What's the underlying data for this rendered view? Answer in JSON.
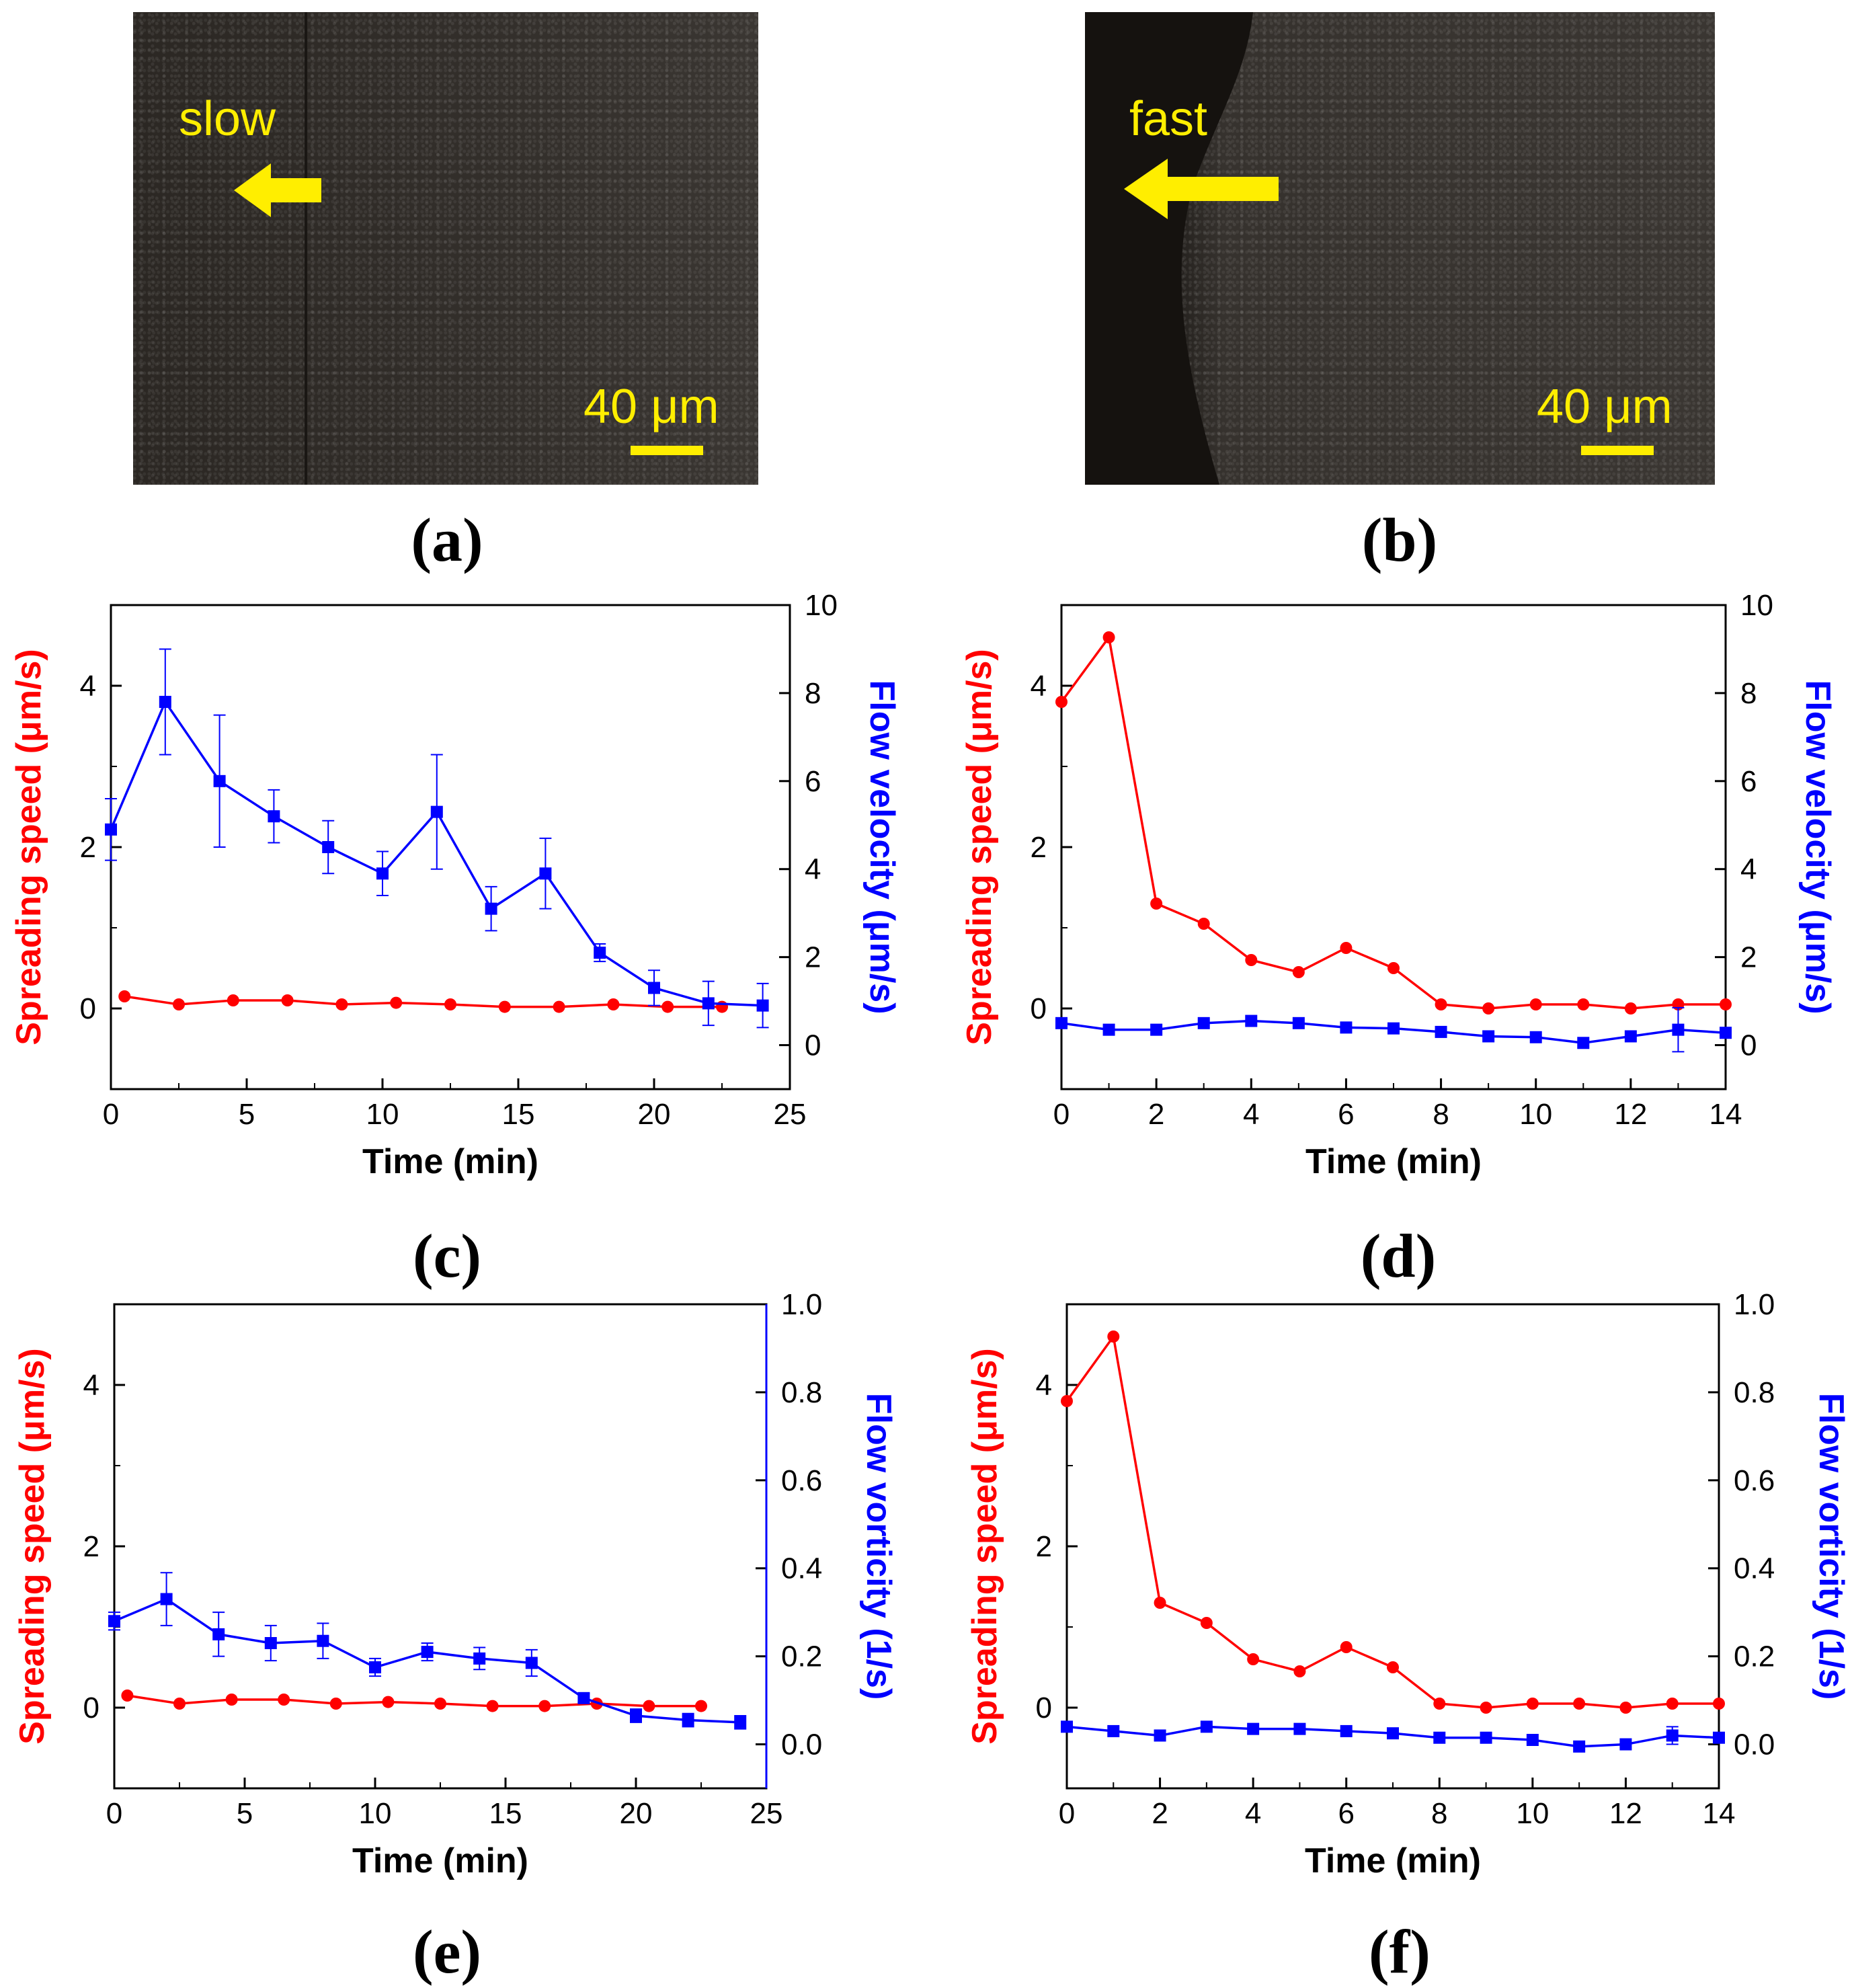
{
  "images": [
    {
      "label": "slow",
      "scale": "40 μm",
      "caption": "(a)"
    },
    {
      "label": "fast",
      "scale": "40 μm",
      "caption": "(b)"
    }
  ],
  "colors": {
    "speed": "#ff0000",
    "flow": "#0000ff",
    "highlight": "#ffee00"
  },
  "chart_data": [
    {
      "id": "c",
      "caption": "(c)",
      "type": "line",
      "xlabel": "Time (min)",
      "ylabel_left": "Spreading speed (μm/s)",
      "ylabel_right": "Flow velocity (μm/s)",
      "xlim": [
        0,
        25
      ],
      "ylim_left": [
        -1,
        5
      ],
      "ylim_right": [
        -1,
        10
      ],
      "xticks": [
        0,
        5,
        10,
        15,
        20,
        25
      ],
      "yticks_left": [
        0,
        2,
        4
      ],
      "yticks_right": [
        0,
        2,
        4,
        6,
        8,
        10
      ],
      "series": [
        {
          "name": "Spreading speed",
          "axis": "left",
          "color": "#ff0000",
          "marker": "circle",
          "x": [
            0.5,
            2.5,
            4.5,
            6.5,
            8.5,
            10.5,
            12.5,
            14.5,
            16.5,
            18.5,
            20.5,
            22.5
          ],
          "y": [
            0.15,
            0.05,
            0.1,
            0.1,
            0.05,
            0.07,
            0.05,
            0.02,
            0.02,
            0.05,
            0.02,
            0.02
          ]
        },
        {
          "name": "Flow velocity",
          "axis": "right",
          "color": "#0000ff",
          "marker": "square",
          "x": [
            0,
            2,
            4,
            6,
            8,
            10,
            12,
            14,
            16,
            18,
            20,
            22,
            24
          ],
          "y": [
            4.9,
            7.8,
            6.0,
            5.2,
            4.5,
            3.9,
            5.3,
            3.1,
            3.9,
            2.1,
            1.3,
            0.95,
            0.9
          ],
          "err": [
            0.7,
            1.2,
            1.5,
            0.6,
            0.6,
            0.5,
            1.3,
            0.5,
            0.8,
            0.2,
            0.4,
            0.5,
            0.5
          ]
        }
      ]
    },
    {
      "id": "d",
      "caption": "(d)",
      "type": "line",
      "xlabel": "Time (min)",
      "ylabel_left": "Spreading speed (μm/s)",
      "ylabel_right": "Flow velocity (μm/s)",
      "xlim": [
        0,
        14
      ],
      "ylim_left": [
        -1,
        5
      ],
      "ylim_right": [
        -1,
        10
      ],
      "xticks": [
        0,
        2,
        4,
        6,
        8,
        10,
        12,
        14
      ],
      "yticks_left": [
        0,
        2,
        4
      ],
      "yticks_right": [
        0,
        2,
        4,
        6,
        8,
        10
      ],
      "series": [
        {
          "name": "Spreading speed",
          "axis": "left",
          "color": "#ff0000",
          "marker": "circle",
          "x": [
            0,
            1,
            2,
            3,
            4,
            5,
            6,
            7,
            8,
            9,
            10,
            11,
            12,
            13,
            14
          ],
          "y": [
            3.8,
            4.6,
            1.3,
            1.05,
            0.6,
            0.45,
            0.75,
            0.5,
            0.05,
            0.0,
            0.05,
            0.05,
            0.0,
            0.05,
            0.05
          ]
        },
        {
          "name": "Flow velocity",
          "axis": "right",
          "color": "#0000ff",
          "marker": "square",
          "x": [
            0,
            1,
            2,
            3,
            4,
            5,
            6,
            7,
            8,
            9,
            10,
            11,
            12,
            13,
            14
          ],
          "y": [
            0.5,
            0.35,
            0.35,
            0.5,
            0.55,
            0.5,
            0.4,
            0.38,
            0.3,
            0.2,
            0.18,
            0.05,
            0.2,
            0.35,
            0.28
          ],
          "err": [
            0,
            0,
            0,
            0,
            0,
            0,
            0,
            0,
            0,
            0,
            0,
            0,
            0,
            0.5,
            0
          ]
        }
      ]
    },
    {
      "id": "e",
      "caption": "(e)",
      "type": "line",
      "xlabel": "Time (min)",
      "ylabel_left": "Spreading speed (μm/s)",
      "ylabel_right": "Flow vorticity (1/s)",
      "xlim": [
        0,
        25
      ],
      "ylim_left": [
        -1,
        5
      ],
      "ylim_right": [
        -0.1,
        1.0
      ],
      "xticks": [
        0,
        5,
        10,
        15,
        20,
        25
      ],
      "yticks_left": [
        0,
        2,
        4
      ],
      "yticks_right": [
        0.0,
        0.2,
        0.4,
        0.6,
        0.8,
        1.0
      ],
      "series": [
        {
          "name": "Spreading speed",
          "axis": "left",
          "color": "#ff0000",
          "marker": "circle",
          "x": [
            0.5,
            2.5,
            4.5,
            6.5,
            8.5,
            10.5,
            12.5,
            14.5,
            16.5,
            18.5,
            20.5,
            22.5
          ],
          "y": [
            0.15,
            0.05,
            0.1,
            0.1,
            0.05,
            0.07,
            0.05,
            0.02,
            0.02,
            0.05,
            0.02,
            0.02
          ]
        },
        {
          "name": "Flow vorticity",
          "axis": "right",
          "color": "#0000ff",
          "marker": "square",
          "x": [
            0,
            2,
            4,
            6,
            8,
            10,
            12,
            14,
            16,
            18,
            20,
            22,
            24
          ],
          "y": [
            0.28,
            0.33,
            0.25,
            0.23,
            0.235,
            0.175,
            0.21,
            0.195,
            0.185,
            0.105,
            0.065,
            0.055,
            0.05
          ],
          "err": [
            0.02,
            0.06,
            0.05,
            0.04,
            0.04,
            0.02,
            0.02,
            0.025,
            0.03,
            0.01,
            0.015,
            0.015,
            0.015
          ]
        }
      ]
    },
    {
      "id": "f",
      "caption": "(f)",
      "type": "line",
      "xlabel": "Time (min)",
      "ylabel_left": "Spreading speed (μm/s)",
      "ylabel_right": "Flow vorticity (1/s)",
      "xlim": [
        0,
        14
      ],
      "ylim_left": [
        -1,
        5
      ],
      "ylim_right": [
        -0.1,
        1.0
      ],
      "xticks": [
        0,
        2,
        4,
        6,
        8,
        10,
        12,
        14
      ],
      "yticks_left": [
        0,
        2,
        4
      ],
      "yticks_right": [
        0.0,
        0.2,
        0.4,
        0.6,
        0.8,
        1.0
      ],
      "series": [
        {
          "name": "Spreading speed",
          "axis": "left",
          "color": "#ff0000",
          "marker": "circle",
          "x": [
            0,
            1,
            2,
            3,
            4,
            5,
            6,
            7,
            8,
            9,
            10,
            11,
            12,
            13,
            14
          ],
          "y": [
            3.8,
            4.6,
            1.3,
            1.05,
            0.6,
            0.45,
            0.75,
            0.5,
            0.05,
            0.0,
            0.05,
            0.05,
            0.0,
            0.05,
            0.05
          ]
        },
        {
          "name": "Flow vorticity",
          "axis": "right",
          "color": "#0000ff",
          "marker": "square",
          "x": [
            0,
            1,
            2,
            3,
            4,
            5,
            6,
            7,
            8,
            9,
            10,
            11,
            12,
            13,
            14
          ],
          "y": [
            0.04,
            0.03,
            0.02,
            0.04,
            0.035,
            0.035,
            0.03,
            0.025,
            0.015,
            0.015,
            0.01,
            -0.005,
            0.0,
            0.02,
            0.015
          ],
          "err": [
            0,
            0,
            0,
            0,
            0,
            0,
            0,
            0,
            0,
            0,
            0,
            0,
            0,
            0.02,
            0
          ]
        }
      ]
    }
  ]
}
